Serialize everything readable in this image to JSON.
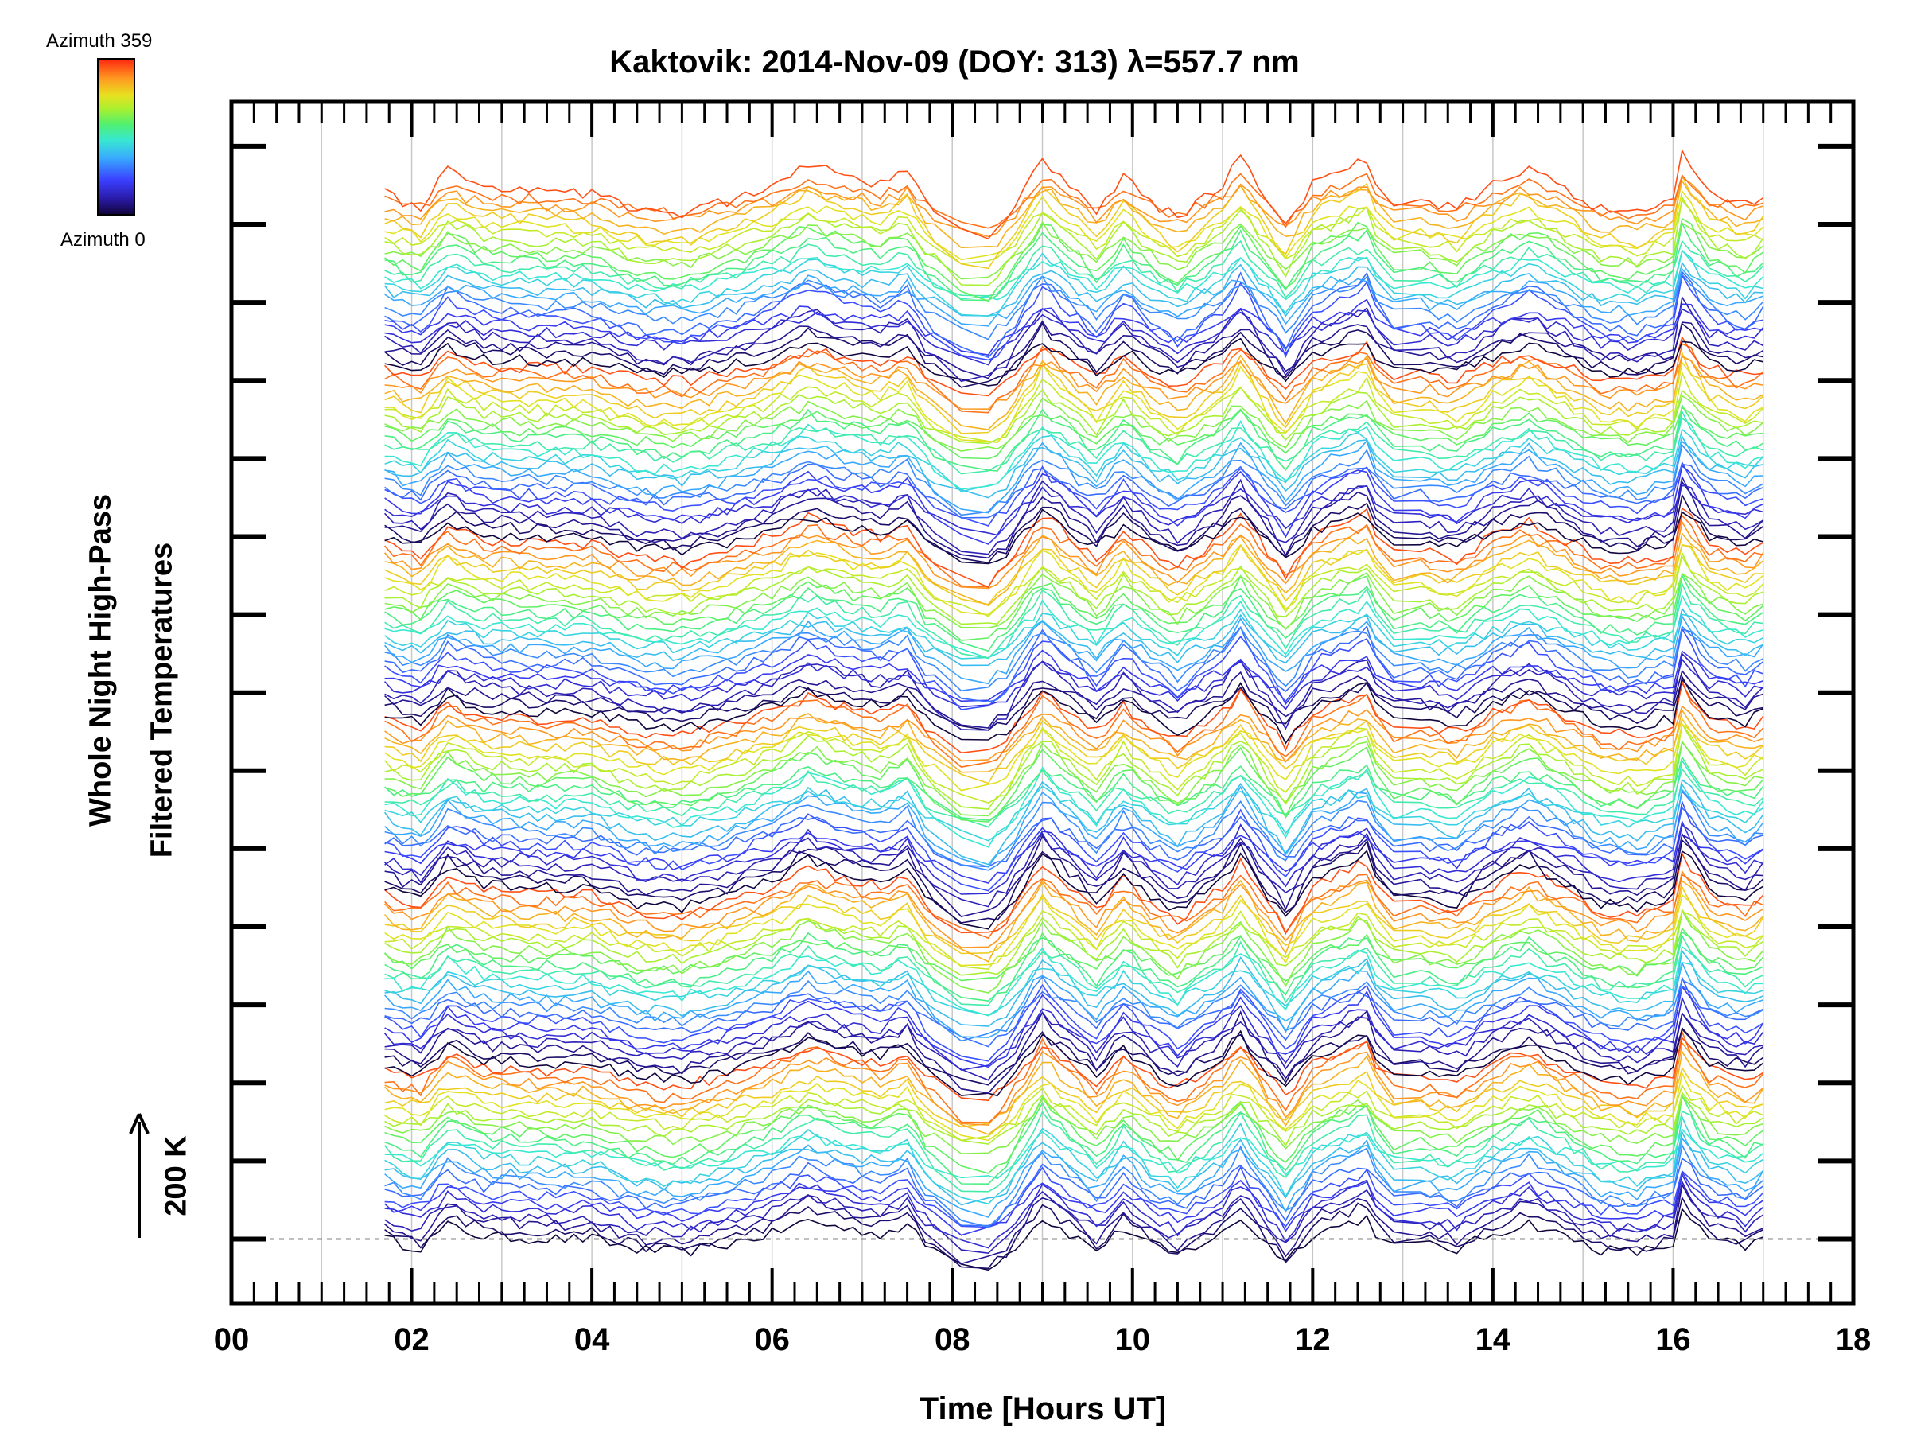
{
  "chart_data": {
    "type": "line",
    "title": "Kaktovik: 2014-Nov-09 (DOY: 313) λ=557.7 nm",
    "xlabel": "Time [Hours UT]",
    "ylabel_lines": [
      "Whole Night High-Pass",
      "Filtered Temperatures"
    ],
    "scale_label": "200 K",
    "scale_value_K": 200,
    "xlim": [
      0,
      18
    ],
    "ylim": [
      -104,
      1846
    ],
    "x_tick_labels": [
      "00",
      "02",
      "04",
      "06",
      "08",
      "10",
      "12",
      "14",
      "16",
      "18"
    ],
    "x_major_step": 2,
    "x_minor_step": 0.25,
    "x_grid_step": 1,
    "y_tick_step_K": 126.7,
    "y_tick_count": 15,
    "grid": true,
    "baseline_K": 0,
    "colorbar": {
      "top_label": "Azimuth 359",
      "bottom_label": "Azimuth 0",
      "min": 0,
      "max": 359
    },
    "series_count": 150,
    "azimuth_cycle_length": 25,
    "series_offset_K": 11.4,
    "data_range_hours": [
      1.7,
      17.0
    ],
    "common_signal": {
      "t": [
        1.7,
        1.9,
        2.1,
        2.4,
        2.8,
        3.5,
        4.0,
        4.5,
        5.0,
        5.5,
        6.0,
        6.4,
        6.8,
        7.2,
        7.5,
        7.7,
        8.0,
        8.3,
        8.6,
        9.0,
        9.3,
        9.6,
        9.9,
        10.2,
        10.5,
        11.0,
        11.2,
        11.5,
        11.7,
        12.0,
        12.3,
        12.6,
        12.8,
        13.2,
        13.6,
        14.0,
        14.4,
        14.8,
        15.2,
        15.6,
        16.0,
        16.1,
        16.4,
        16.8,
        17.0
      ],
      "K": [
        0,
        -10,
        -15,
        25,
        5,
        0,
        0,
        -20,
        -25,
        -10,
        10,
        35,
        20,
        10,
        25,
        -10,
        -40,
        -60,
        -30,
        40,
        10,
        -20,
        20,
        -10,
        -30,
        10,
        40,
        -10,
        -40,
        10,
        25,
        40,
        -15,
        -10,
        -20,
        10,
        30,
        5,
        -20,
        -25,
        -10,
        50,
        0,
        -15,
        0
      ]
    },
    "colors": {
      "axis": "#000000",
      "grid": "#c8c8c8",
      "baseline": "#808080"
    }
  }
}
